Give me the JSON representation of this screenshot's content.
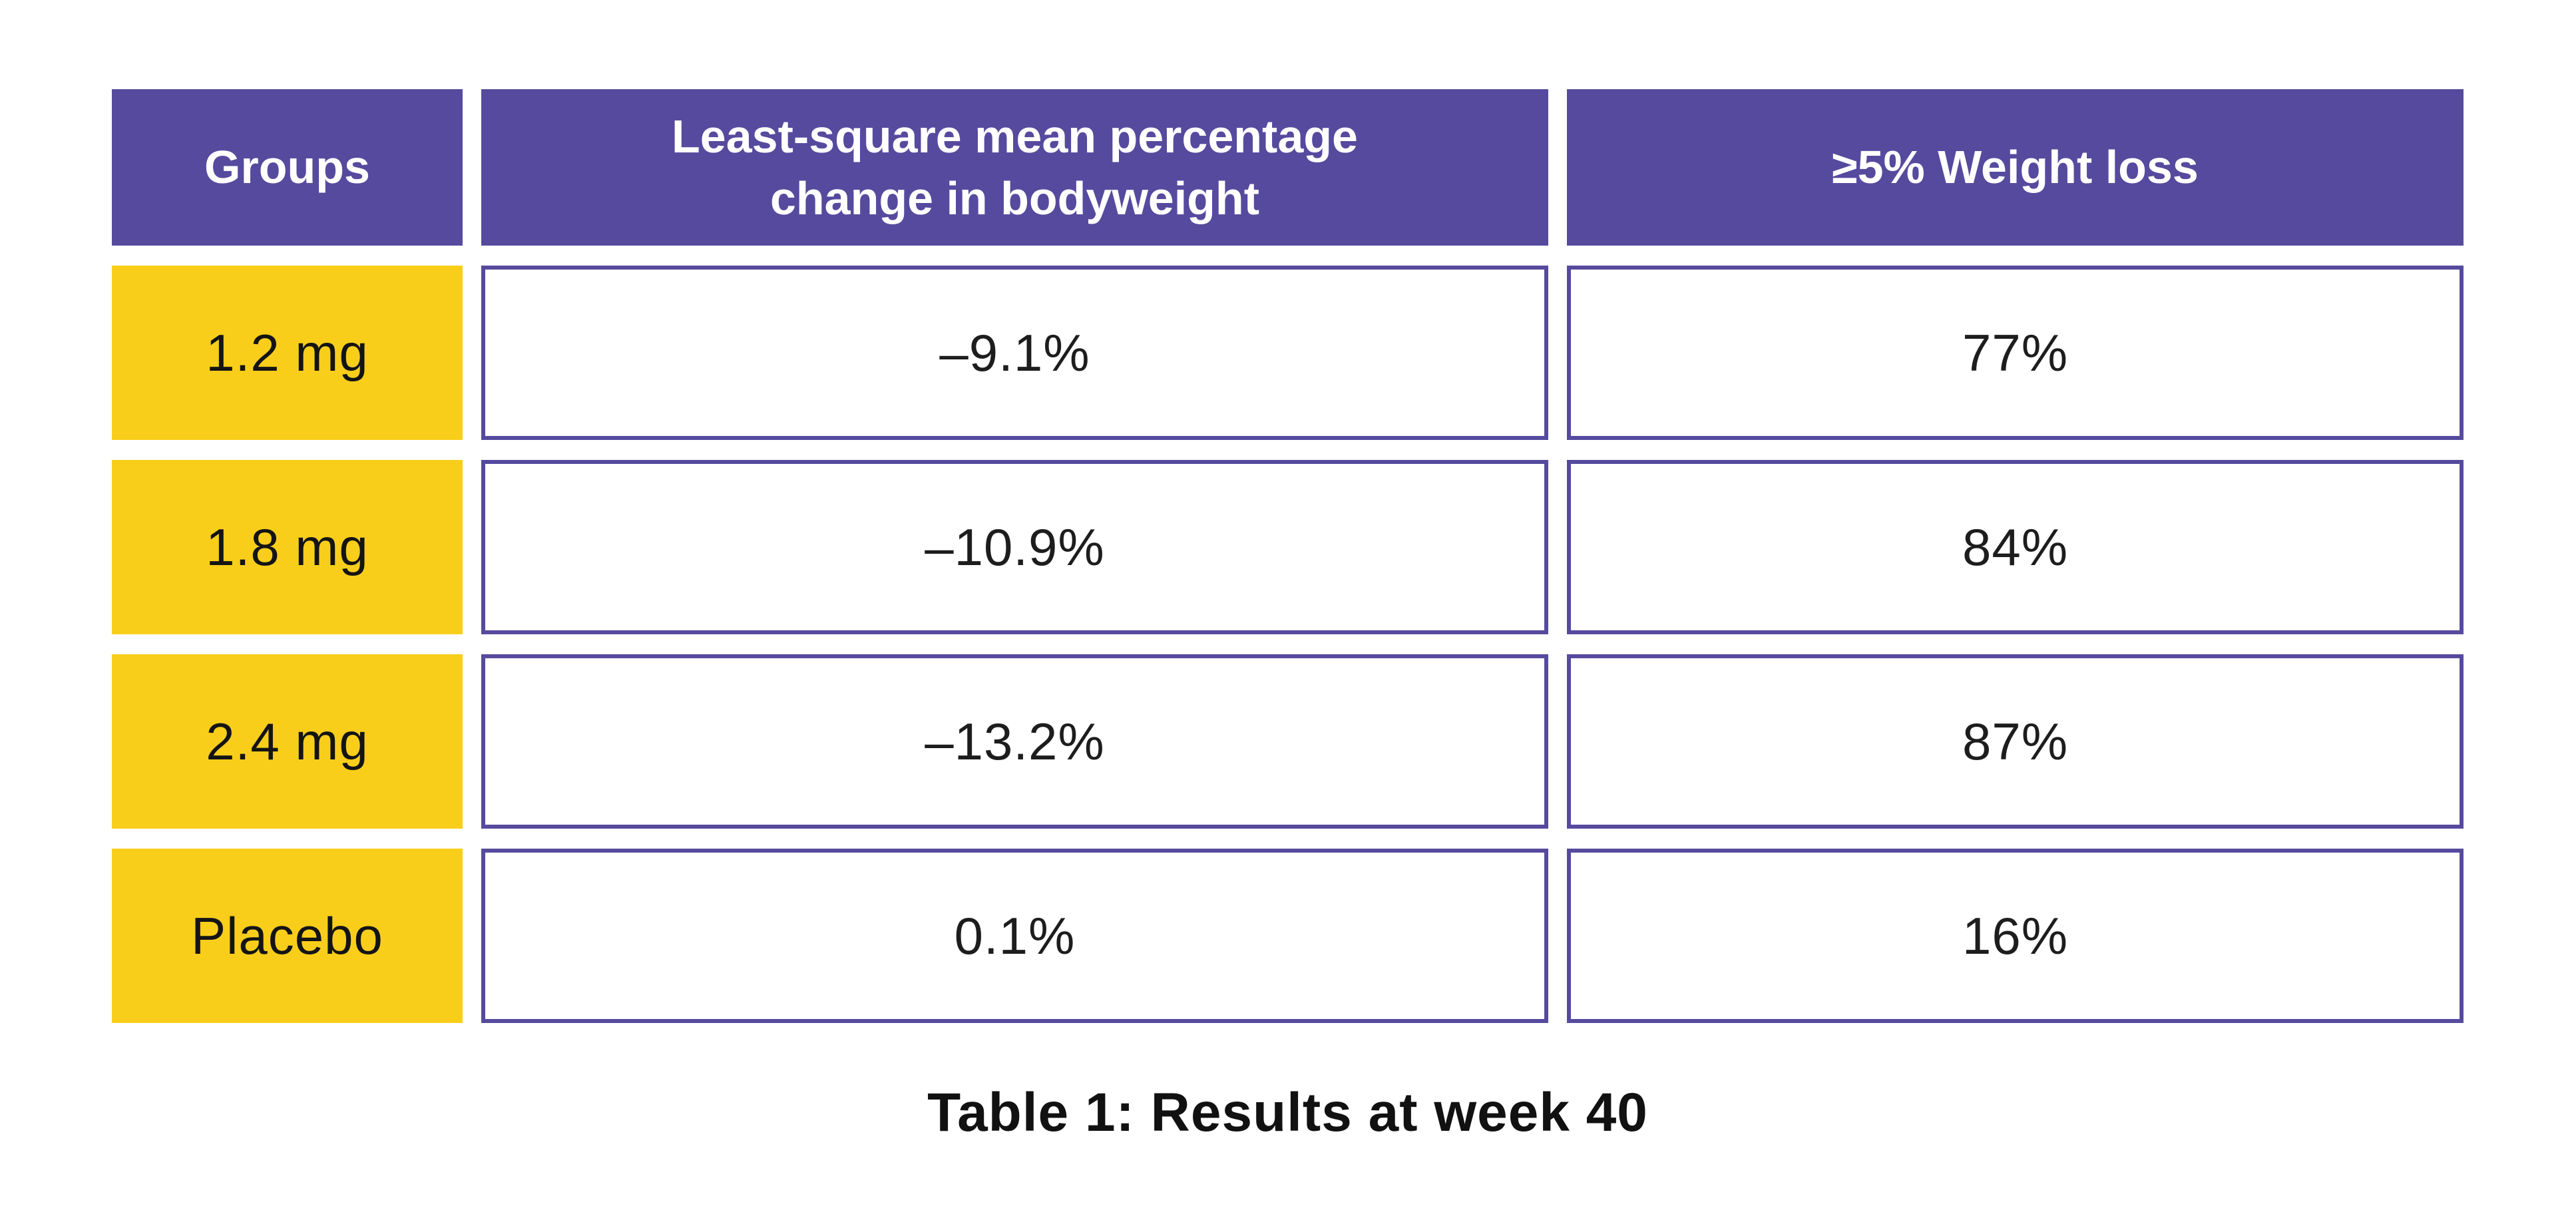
{
  "table": {
    "header": {
      "groups": "Groups",
      "change_line1": "Least-square mean percentage",
      "change_line2": "change in bodyweight",
      "weight_loss": "≥5% Weight loss"
    },
    "rows": [
      {
        "group": "1.2 mg",
        "change": "–9.1%",
        "weight_loss": "77%"
      },
      {
        "group": "1.8 mg",
        "change": "–10.9%",
        "weight_loss": "84%"
      },
      {
        "group": "2.4 mg",
        "change": "–13.2%",
        "weight_loss": "87%"
      },
      {
        "group": "Placebo",
        "change": "0.1%",
        "weight_loss": "16%"
      }
    ],
    "caption": "Table 1: Results at week 40"
  },
  "colors": {
    "header_bg": "#564a9e",
    "group_bg": "#f8ce1b",
    "cell_border": "#564a9e",
    "header_text": "#ffffff",
    "cell_text": "#1d1d1d"
  },
  "chart_data": {
    "type": "table",
    "title": "Table 1: Results at week 40",
    "columns": [
      "Groups",
      "Least-square mean percentage change in bodyweight",
      "≥5% Weight loss"
    ],
    "categories": [
      "1.2 mg",
      "1.8 mg",
      "2.4 mg",
      "Placebo"
    ],
    "rows": [
      [
        "1.2 mg",
        "–9.1%",
        "77%"
      ],
      [
        "1.8 mg",
        "–10.9%",
        "84%"
      ],
      [
        "2.4 mg",
        "–13.2%",
        "87%"
      ],
      [
        "Placebo",
        "0.1%",
        "16%"
      ]
    ],
    "series": [
      {
        "name": "Least-square mean percentage change in bodyweight",
        "unit": "%",
        "values": [
          -9.1,
          -10.9,
          -13.2,
          0.1
        ]
      },
      {
        "name": "≥5% Weight loss",
        "unit": "%",
        "values": [
          77,
          84,
          87,
          16
        ]
      }
    ]
  }
}
